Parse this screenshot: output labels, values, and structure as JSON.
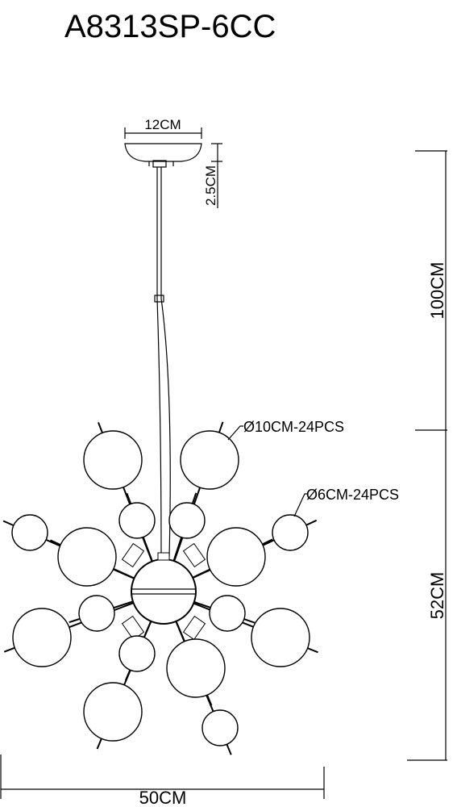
{
  "title": "A8313SP-6CC",
  "dimensions": {
    "canopy_width": "12CM",
    "canopy_height": "2.5CM",
    "cable_length": "100CM",
    "body_height": "52CM",
    "body_width": "50CM"
  },
  "callouts": [
    "Ø10CM-24PCS",
    "Ø6CM-24PCS"
  ]
}
